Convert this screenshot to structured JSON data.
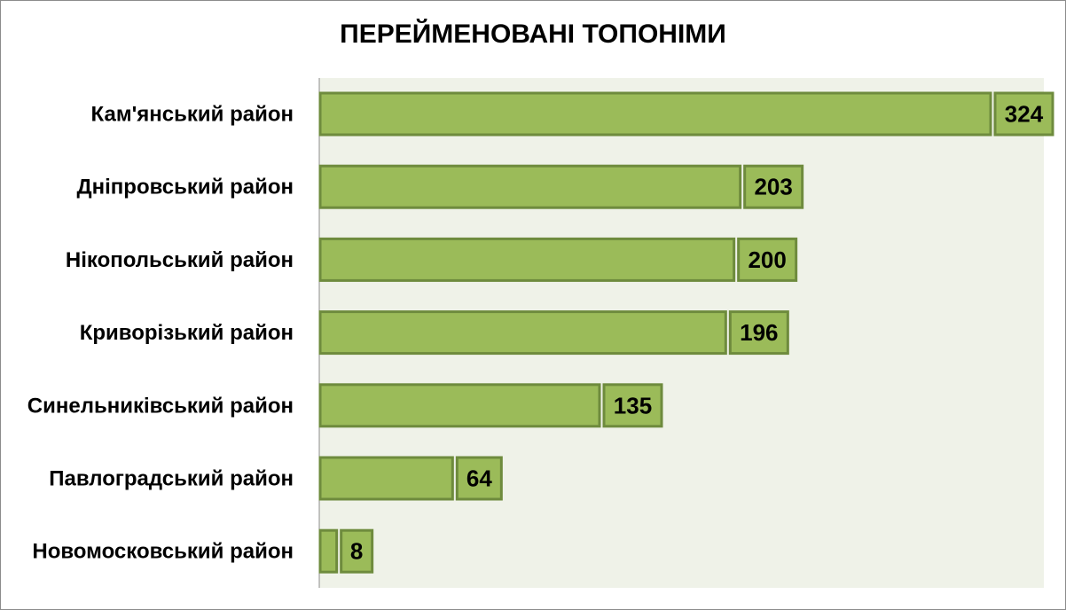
{
  "chart_data": {
    "type": "bar",
    "orientation": "horizontal",
    "title": "ПЕРЕЙМЕНОВАНІ ТОПОНІМИ",
    "xlabel": "",
    "ylabel": "",
    "categories": [
      "Кам'янський район",
      "Дніпровський район",
      "Нікопольський район",
      "Криворізький район",
      "Синельниківський район",
      "Павлоградський район",
      "Новомосковський район"
    ],
    "values": [
      324,
      203,
      200,
      196,
      135,
      64,
      8
    ],
    "data_labels": [
      "324",
      "203",
      "200",
      "196",
      "135",
      "64",
      "8"
    ],
    "xlim": [
      0,
      324
    ],
    "grid": false,
    "legend": "none",
    "colors": {
      "bar_fill": "#9bbb59",
      "bar_border": "#6e8b3d",
      "plot_background": "#eff2e8",
      "axis": "#8c8c8c"
    }
  }
}
